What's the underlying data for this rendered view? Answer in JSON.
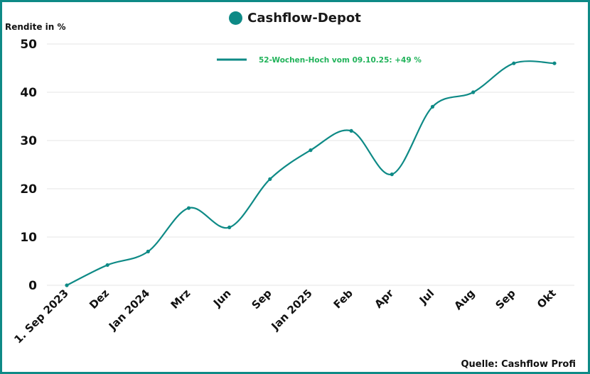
{
  "chart_data": {
    "type": "line",
    "title": "Cashflow-Depot",
    "ylabel": "Rendite in %",
    "xlabel": "",
    "ylim": [
      0,
      50
    ],
    "yticks": [
      0,
      10,
      20,
      30,
      40,
      50
    ],
    "grid": true,
    "legend_position": "top",
    "categories": [
      "1. Sep 2023",
      "Dez",
      "Jan 2024",
      "Mrz",
      "Jun",
      "Sep",
      "Jan 2025",
      "Feb",
      "Apr",
      "Jul",
      "Aug",
      "Sep",
      "Okt"
    ],
    "series": [
      {
        "name": "52-Wochen-Hoch vom 09.10.25: +49 %",
        "values": [
          0,
          4.2,
          7,
          16,
          12,
          22,
          28,
          32,
          23,
          37,
          40,
          46,
          46
        ]
      }
    ],
    "source": "Quelle: Cashflow Profi"
  },
  "colors": {
    "line": "#0e8a86",
    "legend_text": "#21b35a",
    "grid": "#e6e6e6",
    "text": "#111111"
  }
}
